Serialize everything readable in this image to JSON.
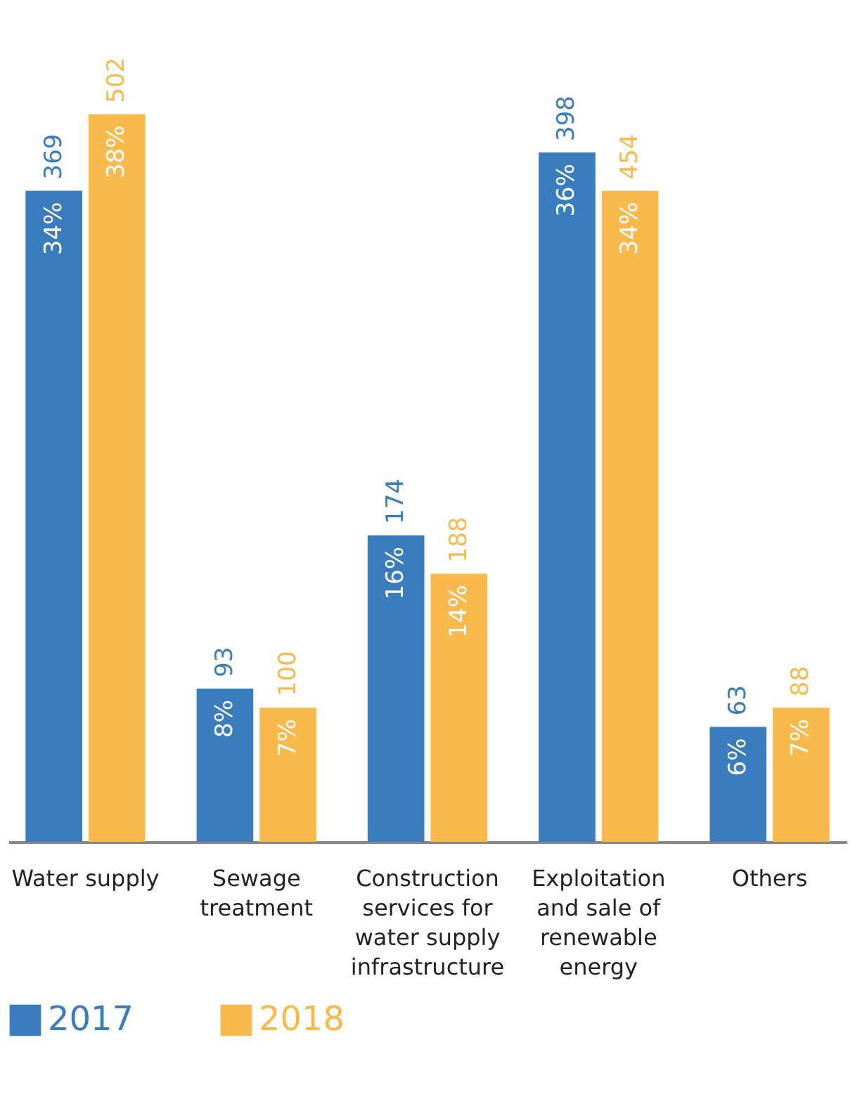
{
  "chart_data": {
    "type": "bar",
    "categories": [
      "Water supply",
      "Sewage treatment",
      "Construction services for water supply infrastructure",
      "Exploitation and sale of renewable energy",
      "Others"
    ],
    "series": [
      {
        "name": "2017",
        "color": "#3a7dbf",
        "values": [
          34,
          8,
          16,
          36,
          6
        ],
        "value_labels": [
          "34%",
          "8%",
          "16%",
          "36%",
          "6%"
        ]
      },
      {
        "name": "2018",
        "color": "#f9b94c",
        "values": [
          38,
          7,
          14,
          34,
          7
        ],
        "value_labels": [
          "38%",
          "7%",
          "14%",
          "34%",
          "7%"
        ]
      }
    ],
    "annotations": [
      {
        "text": "369",
        "x": "Water supply",
        "y": 34
      },
      {
        "text": "502",
        "x": "Water supply",
        "y": 38
      },
      {
        "text": "93",
        "x": "Sewage treatment",
        "y": 8
      },
      {
        "text": "100",
        "x": "Sewage treatment",
        "y": 7
      },
      {
        "text": "174",
        "x": "Construction services for water supply infrastructure",
        "y": 16
      },
      {
        "text": "188",
        "x": "Construction services for water supply infrastructure",
        "y": 14
      },
      {
        "text": "398",
        "x": "Exploitation and sale of renewable energy",
        "y": 36
      },
      {
        "text": "454",
        "x": "Exploitation and sale of renewable energy",
        "y": 34
      },
      {
        "text": "63",
        "x": "Others",
        "y": 6
      },
      {
        "text": "88",
        "x": "Others",
        "y": 7
      }
    ],
    "legend": "bottom",
    "grid": false
  }
}
